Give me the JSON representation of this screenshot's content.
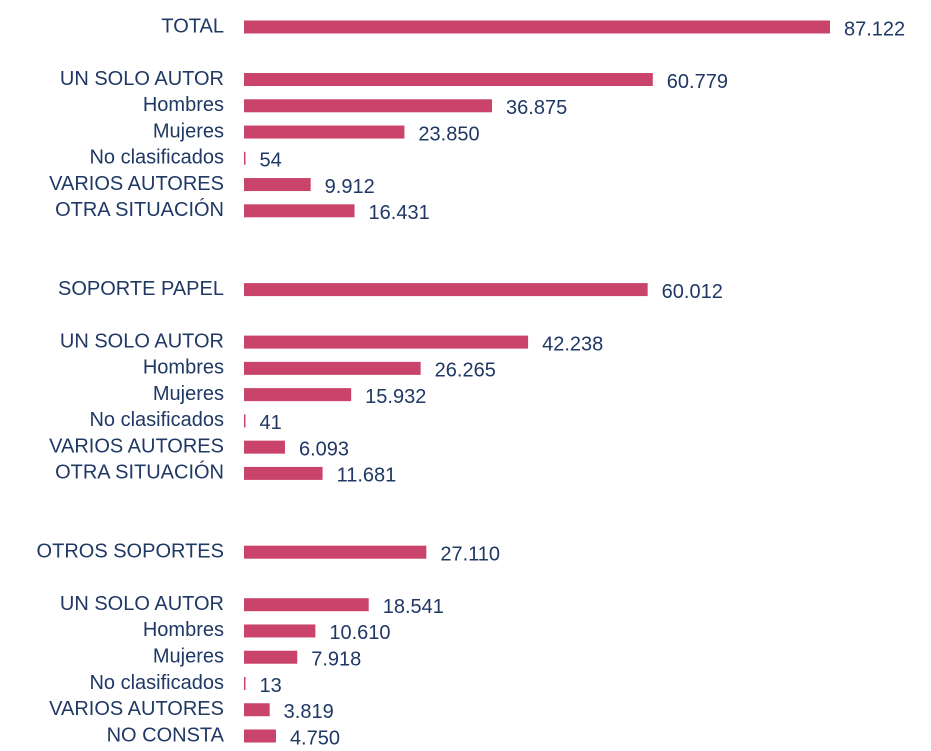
{
  "chart_data": {
    "type": "bar",
    "orientation": "horizontal",
    "color": "#c9436b",
    "categories": [
      "TOTAL",
      null,
      "UN SOLO AUTOR",
      "Hombres",
      "Mujeres",
      "No clasificados",
      "VARIOS AUTORES",
      "OTRA SITUACIÓN",
      null,
      null,
      "SOPORTE PAPEL",
      null,
      "UN SOLO AUTOR",
      "Hombres",
      "Mujeres",
      "No clasificados",
      "VARIOS AUTORES",
      "OTRA SITUACIÓN",
      null,
      null,
      "OTROS SOPORTES",
      null,
      "UN SOLO AUTOR",
      "Hombres",
      "Mujeres",
      "No clasificados",
      "VARIOS AUTORES",
      "NO CONSTA"
    ],
    "values": [
      87122,
      null,
      60779,
      36875,
      23850,
      54,
      9912,
      16431,
      null,
      null,
      60012,
      null,
      42238,
      26265,
      15932,
      41,
      6093,
      11681,
      null,
      null,
      27110,
      null,
      18541,
      10610,
      7918,
      13,
      3819,
      4750
    ],
    "value_labels": [
      "87.122",
      null,
      "60.779",
      "36.875",
      "23.850",
      "54",
      "9.912",
      "16.431",
      null,
      null,
      "60.012",
      null,
      "42.238",
      "26.265",
      "15.932",
      "41",
      "6.093",
      "11.681",
      null,
      null,
      "27.110",
      null,
      "18.541",
      "10.610",
      "7.918",
      "13",
      "3.819",
      "4.750"
    ]
  }
}
